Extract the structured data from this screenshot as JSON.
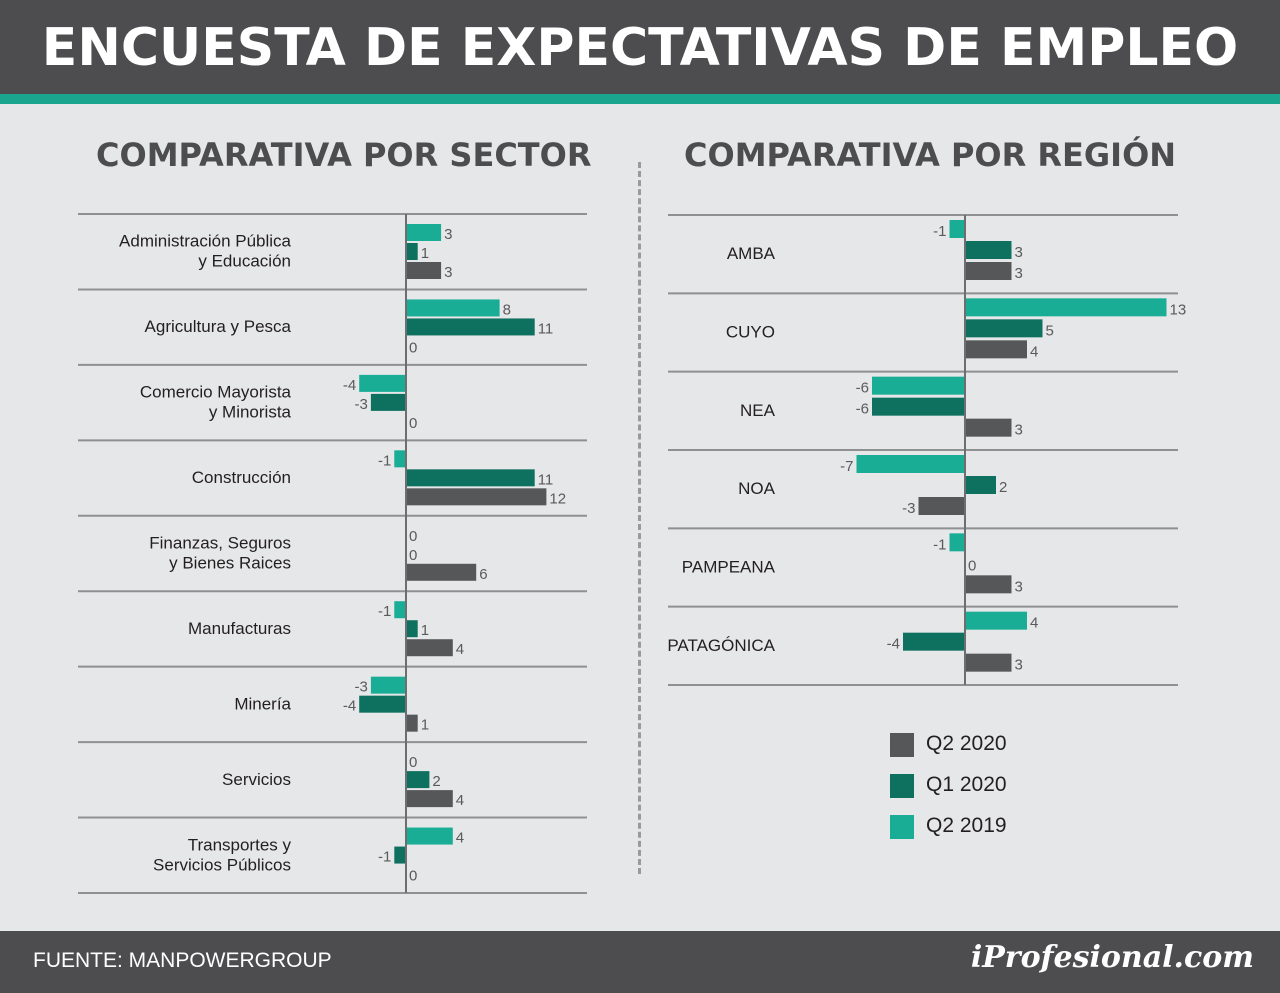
{
  "header": {
    "title": "ENCUESTA DE EXPECTATIVAS DE EMPLEO"
  },
  "footer": {
    "source": "FUENTE: MANPOWERGROUP",
    "logo": "iProfesional.com"
  },
  "colors": {
    "q2_2020": "#555759",
    "q1_2020": "#0e705e",
    "q2_2019": "#19ad95",
    "header_bg": "#4d4d4f",
    "accent": "#1aa58f"
  },
  "legend": [
    {
      "label": "Q2 2020",
      "color": "#555759"
    },
    {
      "label": "Q1 2020",
      "color": "#0e705e"
    },
    {
      "label": "Q2 2019",
      "color": "#19ad95"
    }
  ],
  "chart_data": [
    {
      "type": "bar",
      "orientation": "horizontal",
      "title": "COMPARATIVA POR SECTOR",
      "categories": [
        [
          "Administración Pública",
          "y Educación"
        ],
        [
          "Agricultura y Pesca"
        ],
        [
          "Comercio Mayorista",
          "y Minorista"
        ],
        [
          "Construcción"
        ],
        [
          "Finanzas, Seguros",
          "y Bienes Raices"
        ],
        [
          "Manufacturas"
        ],
        [
          "Minería"
        ],
        [
          "Servicios"
        ],
        [
          "Transportes y",
          "Servicios Públicos"
        ]
      ],
      "series": [
        {
          "name": "Q2 2019",
          "values": [
            3,
            8,
            -4,
            -1,
            0,
            -1,
            -3,
            0,
            4
          ]
        },
        {
          "name": "Q1 2020",
          "values": [
            1,
            11,
            -3,
            11,
            0,
            1,
            -4,
            2,
            -1
          ]
        },
        {
          "name": "Q2 2020",
          "values": [
            3,
            0,
            0,
            12,
            6,
            4,
            1,
            4,
            0
          ]
        }
      ],
      "grid": true
    },
    {
      "type": "bar",
      "orientation": "horizontal",
      "title": "COMPARATIVA POR REGIÓN",
      "categories": [
        [
          "AMBA"
        ],
        [
          "CUYO"
        ],
        [
          "NEA"
        ],
        [
          "NOA"
        ],
        [
          "PAMPEANA"
        ],
        [
          "PATAGÓNICA"
        ]
      ],
      "series": [
        {
          "name": "Q2 2019",
          "values": [
            -1,
            13,
            -6,
            -7,
            -1,
            4
          ]
        },
        {
          "name": "Q1 2020",
          "values": [
            3,
            5,
            -6,
            2,
            0,
            -4
          ]
        },
        {
          "name": "Q2 2020",
          "values": [
            3,
            4,
            3,
            -3,
            3,
            3
          ]
        }
      ],
      "grid": true,
      "legend_position": "bottom-right"
    }
  ]
}
